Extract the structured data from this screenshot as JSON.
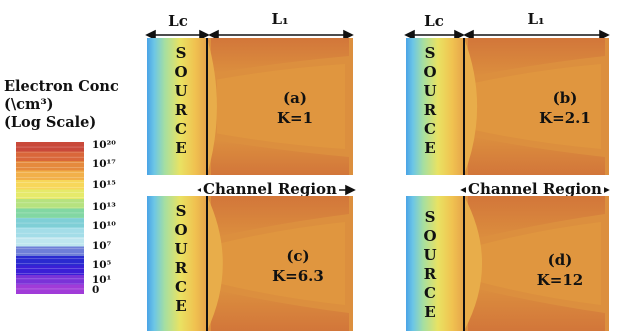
{
  "legend": {
    "title_lines": [
      "Electron Conc",
      "(\\cm³)",
      "(Log Scale)"
    ],
    "ticks": [
      {
        "label": "10²⁰",
        "pos": 0.02
      },
      {
        "label": "10¹⁷",
        "pos": 0.145
      },
      {
        "label": "10¹⁵",
        "pos": 0.28
      },
      {
        "label": "10¹³",
        "pos": 0.425
      },
      {
        "label": "10¹⁰",
        "pos": 0.555
      },
      {
        "label": "10⁷",
        "pos": 0.685
      },
      {
        "label": "10⁵",
        "pos": 0.81
      },
      {
        "label": "10¹",
        "pos": 0.905
      },
      {
        "label": "0",
        "pos": 0.975
      }
    ],
    "colors": [
      "#c9493a",
      "#d9673a",
      "#e58a3d",
      "#f2b04a",
      "#f7d75a",
      "#e6ea6a",
      "#b6e27f",
      "#82d7a3",
      "#7fcfd6",
      "#a3dde8",
      "#bfe6ef",
      "#6f7fd8",
      "#2a2ad0",
      "#3b1fd6",
      "#7a33d8",
      "#a03bd8"
    ]
  },
  "dims": {
    "lc": "Lc",
    "l1": "L₁"
  },
  "channel_region": "Channel Region",
  "source_letters": [
    "S",
    "O",
    "U",
    "R",
    "C",
    "E"
  ],
  "panels": [
    {
      "id": "a",
      "label": "(a)",
      "k": "K=1"
    },
    {
      "id": "b",
      "label": "(b)",
      "k": "K=2.1"
    },
    {
      "id": "c",
      "label": "(c)",
      "k": "K=6.3"
    },
    {
      "id": "d",
      "label": "(d)",
      "k": "K=12"
    }
  ],
  "colors": {
    "body": "#dc8f3e",
    "edge": "#e29a44",
    "source_blue": "#5fb6e8",
    "source_yellow": "#f1d85a",
    "divider": "#111111"
  }
}
